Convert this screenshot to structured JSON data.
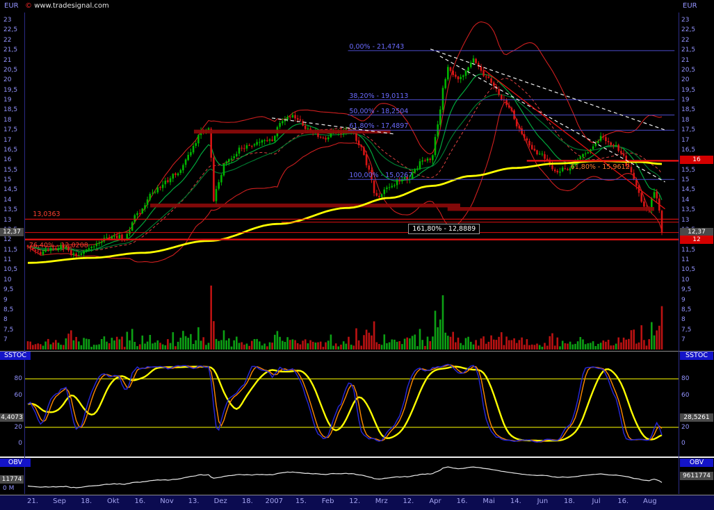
{
  "header": {
    "instrument_currency_left": "EUR",
    "instrument_currency_right": "EUR",
    "copyright_symbol": "©",
    "copyright": "www.tradesignal.com"
  },
  "axes": {
    "price_min": 7,
    "price_max": 23,
    "price_step": 0.5,
    "current_price_label": "12,37",
    "alert_label_16": "16",
    "alert_label_12": "12",
    "date_labels": [
      "21.",
      "Sep",
      "18.",
      "Okt",
      "16.",
      "Nov",
      "13.",
      "Dez",
      "18.",
      "2007",
      "15.",
      "Feb",
      "12.",
      "Mrz",
      "12.",
      "Apr",
      "16.",
      "Mai",
      "14.",
      "Jun",
      "18.",
      "Jul",
      "16.",
      "Aug"
    ]
  },
  "colors": {
    "bg": "#000000",
    "axis_text": "#9494ff",
    "date_text": "#a6a6f2",
    "candle_up": "#00b400",
    "candle_down": "#d81414",
    "vol_up": "#0ca014",
    "vol_down": "#bb1212",
    "ma_yellow": "#ffff00",
    "ema_green_fast": "#00a83c",
    "ema_green_slow": "#007a30",
    "band_red": "#cf1f1f",
    "mid_red_dashed": "#e04040",
    "fib_blue": "#4d4dcc",
    "fib_label_blue": "#6b6bff",
    "level_red": "#e01010",
    "level_label_red": "#ff4030",
    "zone_red": "#8c0a0a",
    "trend_white": "#f2f2f2",
    "stoch_k": "#2626d2",
    "stoch_d": "#ff8a00",
    "stoch_slow": "#ffff00",
    "stoch_band": "#cfcf00",
    "obv_line": "#e9e9e9",
    "strip_bg": "#0b0b50",
    "title_box_bg": "#1414c8",
    "value_box_bg": "#4a4a4a",
    "alert_box_bg": "#d40000",
    "separator": "#8a8a8a"
  },
  "chart_data": {
    "type": "candlestick",
    "instrument": "EUR",
    "period": "daily, Aug 2006 - Aug 2007",
    "last_close": 12.37,
    "num_candles": 250,
    "price_axis_range": [
      7,
      23
    ],
    "price_anchors": [
      [
        0.0,
        11.55
      ],
      [
        0.025,
        11.35
      ],
      [
        0.05,
        11.65
      ],
      [
        0.08,
        11.25
      ],
      [
        0.105,
        11.75
      ],
      [
        0.13,
        12.2
      ],
      [
        0.15,
        12.05
      ],
      [
        0.174,
        13.3
      ],
      [
        0.195,
        14.3
      ],
      [
        0.216,
        14.9
      ],
      [
        0.235,
        15.3
      ],
      [
        0.252,
        16.1
      ],
      [
        0.263,
        16.7
      ],
      [
        0.272,
        17.55
      ],
      [
        0.279,
        17.3
      ],
      [
        0.284,
        17.7
      ],
      [
        0.288,
        16.5
      ],
      [
        0.292,
        14.05
      ],
      [
        0.3,
        14.85
      ],
      [
        0.31,
        15.7
      ],
      [
        0.32,
        16.1
      ],
      [
        0.339,
        16.6
      ],
      [
        0.36,
        16.85
      ],
      [
        0.386,
        17.05
      ],
      [
        0.4,
        17.9
      ],
      [
        0.412,
        18.25
      ],
      [
        0.426,
        18.0
      ],
      [
        0.44,
        17.6
      ],
      [
        0.455,
        17.25
      ],
      [
        0.471,
        17.1
      ],
      [
        0.485,
        17.4
      ],
      [
        0.5,
        17.5
      ],
      [
        0.513,
        17.3
      ],
      [
        0.526,
        16.6
      ],
      [
        0.538,
        15.4
      ],
      [
        0.548,
        14.3
      ],
      [
        0.556,
        14.25
      ],
      [
        0.568,
        14.6
      ],
      [
        0.582,
        14.95
      ],
      [
        0.598,
        15.05
      ],
      [
        0.612,
        15.6
      ],
      [
        0.625,
        16.0
      ],
      [
        0.636,
        16.1
      ],
      [
        0.644,
        17.2
      ],
      [
        0.65,
        18.5
      ],
      [
        0.656,
        19.7
      ],
      [
        0.662,
        20.8
      ],
      [
        0.67,
        20.3
      ],
      [
        0.678,
        19.95
      ],
      [
        0.686,
        20.3
      ],
      [
        0.695,
        20.7
      ],
      [
        0.704,
        21.0
      ],
      [
        0.712,
        20.6
      ],
      [
        0.72,
        20.25
      ],
      [
        0.726,
        20.1
      ],
      [
        0.738,
        19.55
      ],
      [
        0.75,
        19.0
      ],
      [
        0.762,
        18.4
      ],
      [
        0.774,
        17.6
      ],
      [
        0.786,
        16.9
      ],
      [
        0.798,
        16.5
      ],
      [
        0.81,
        16.25
      ],
      [
        0.822,
        15.8
      ],
      [
        0.835,
        15.35
      ],
      [
        0.853,
        15.6
      ],
      [
        0.865,
        15.95
      ],
      [
        0.878,
        16.3
      ],
      [
        0.89,
        16.6
      ],
      [
        0.897,
        16.9
      ],
      [
        0.906,
        17.15
      ],
      [
        0.916,
        16.95
      ],
      [
        0.926,
        16.6
      ],
      [
        0.937,
        16.35
      ],
      [
        0.947,
        15.7
      ],
      [
        0.956,
        15.0
      ],
      [
        0.964,
        14.3
      ],
      [
        0.972,
        13.7
      ],
      [
        0.979,
        13.45
      ],
      [
        0.984,
        13.95
      ],
      [
        0.989,
        14.4
      ],
      [
        0.994,
        13.95
      ],
      [
        1.0,
        12.37
      ]
    ],
    "yellow_ma_anchors": [
      [
        0.0,
        10.85
      ],
      [
        0.1,
        11.1
      ],
      [
        0.18,
        11.35
      ],
      [
        0.285,
        11.95
      ],
      [
        0.395,
        12.8
      ],
      [
        0.505,
        13.6
      ],
      [
        0.57,
        14.1
      ],
      [
        0.636,
        14.7
      ],
      [
        0.7,
        15.2
      ],
      [
        0.768,
        15.6
      ],
      [
        0.833,
        15.82
      ],
      [
        0.9,
        15.95
      ],
      [
        0.965,
        15.9
      ],
      [
        1.0,
        15.8
      ]
    ],
    "indicators": {
      "bollinger_period": 26,
      "bollinger_mult": 2.0,
      "ema_fast": 12,
      "ema_slow": 30,
      "mid_sma": 26
    },
    "fibonacci_blue": {
      "span_t": [
        0.505,
        1.02
      ],
      "label_t": 0.507,
      "levels": [
        {
          "label": "0,00% - 21,4743",
          "value": 21.4743
        },
        {
          "label": "38,20% - 19,0113",
          "value": 19.0113
        },
        {
          "label": "50,00% - 18,2504",
          "value": 18.2504
        },
        {
          "label": "61,80% - 17,4897",
          "value": 17.4897
        },
        {
          "label": "100,00% - 15,0267",
          "value": 15.0267
        }
      ]
    },
    "red_levels": [
      {
        "label": "13,0363",
        "value": 13.0363,
        "t0": -0.05,
        "t1": 1.03,
        "width": 1.2,
        "label_t": 0.008,
        "label_dy": -12
      },
      {
        "label": "",
        "value": 12.37,
        "t0": -0.05,
        "t1": 1.03,
        "width": 1,
        "label_t": 0,
        "label_dy": 0
      },
      {
        "label": "76,40% - 12,0208",
        "value": 12.0208,
        "t0": -0.05,
        "t1": 1.03,
        "width": 2.4,
        "label_t": 0.002,
        "label_dy": 3
      },
      {
        "label": "161,80% - 12,8889",
        "value": 12.8889,
        "t0": 0.4,
        "t1": 1.03,
        "width": 1,
        "label_t": 0.6,
        "label_dy": 2,
        "boxed": true
      },
      {
        "label": "61,80% - 15,9612",
        "value": 15.9612,
        "t0": 0.787,
        "t1": 1.03,
        "width": 2.6,
        "label_t": 0.856,
        "label_dy": 4,
        "label_color": "#ff7a30"
      }
    ],
    "resistance_zones": [
      {
        "value": 17.42,
        "t0": 0.262,
        "t1": 0.572
      },
      {
        "value": 13.72,
        "t0": 0.193,
        "t1": 0.682
      },
      {
        "value": 13.55,
        "t0": 0.662,
        "t1": 0.988
      }
    ],
    "trendlines": {
      "white_dashed": [
        [
          0.635,
          21.55,
          1.005,
          17.5
        ],
        [
          0.65,
          21.2,
          1.005,
          14.9
        ],
        [
          0.385,
          18.1,
          0.578,
          17.3
        ]
      ],
      "red_solid": [
        [
          0.72,
          20.5,
          1.005,
          13.55
        ]
      ]
    },
    "sstoc_panel": {
      "title": "SSTOC",
      "overbought": 80,
      "oversold": 20,
      "k_period": 14,
      "k_smooth": 3,
      "d_smooth": 3,
      "slow_smooth": 9,
      "ticks": [
        {
          "label": "80",
          "value": 80
        },
        {
          "label": "60",
          "value": 60
        },
        {
          "label": "20",
          "value": 20
        },
        {
          "label": "0",
          "value": 0
        }
      ],
      "current_left_label": "4,4073",
      "current_right_label": "28,5261"
    },
    "obv_panel": {
      "title": "OBV",
      "current_left_label": "11774",
      "current_right_label": "9611774",
      "scale_label": "0 M"
    }
  }
}
